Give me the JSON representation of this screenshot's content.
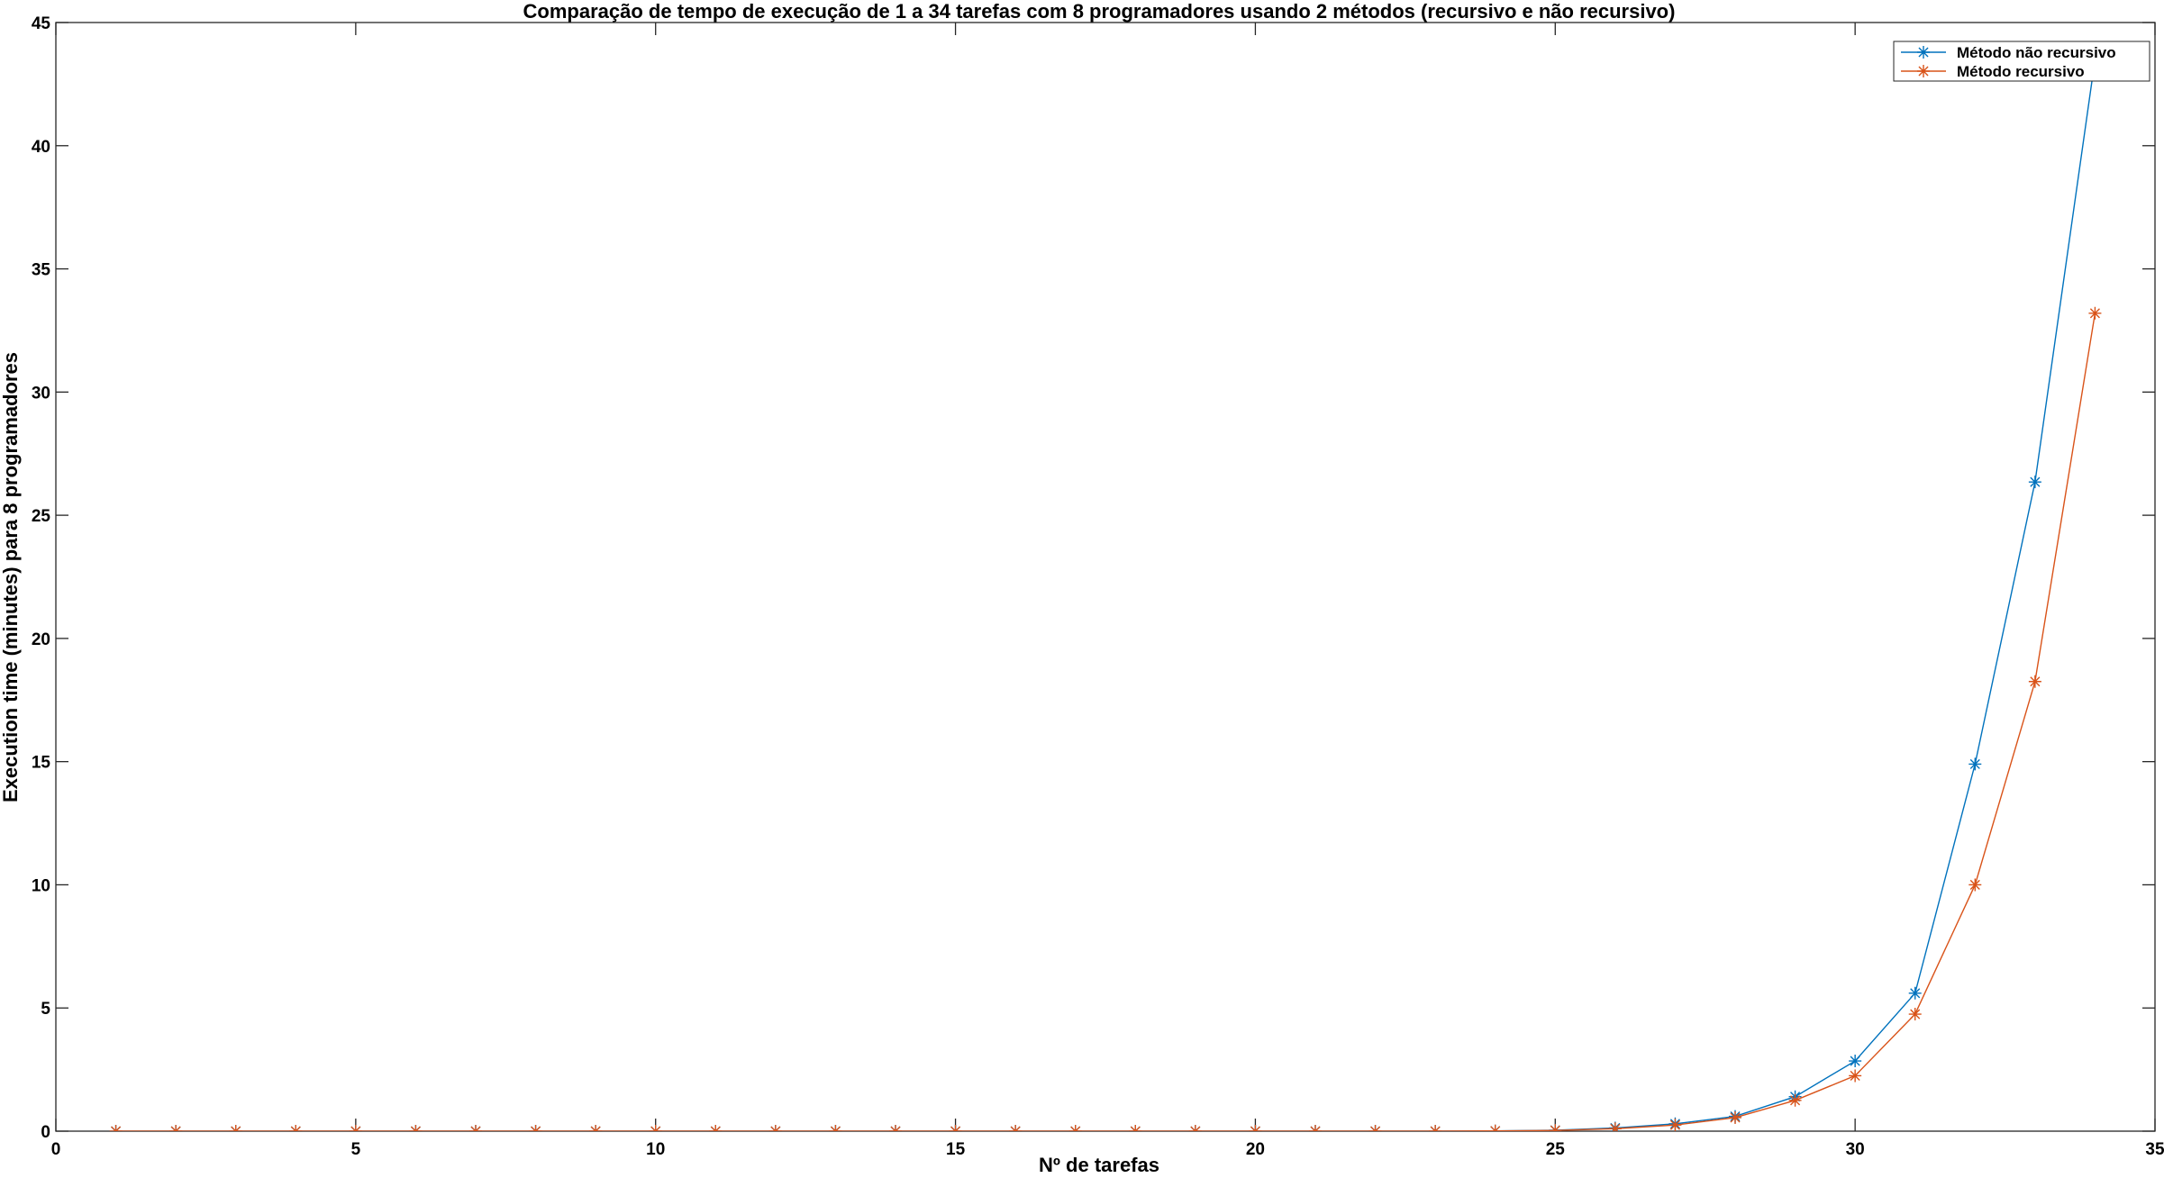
{
  "chart_data": {
    "type": "line",
    "title": "Comparação de tempo de execução de 1 a 34 tarefas com 8 programadores usando 2 métodos (recursivo e não recursivo)",
    "xlabel": "Nº de tarefas",
    "ylabel": "Execution time (minutes) para 8 programadores",
    "xlim": [
      0,
      35
    ],
    "ylim": [
      0,
      45
    ],
    "xticks": [
      0,
      5,
      10,
      15,
      20,
      25,
      30,
      35
    ],
    "yticks": [
      0,
      5,
      10,
      15,
      20,
      25,
      30,
      35,
      40,
      45
    ],
    "legend_position": "top-right",
    "grid": false,
    "marker": "asterisk",
    "x": [
      1,
      2,
      3,
      4,
      5,
      6,
      7,
      8,
      9,
      10,
      11,
      12,
      13,
      14,
      15,
      16,
      17,
      18,
      19,
      20,
      21,
      22,
      23,
      24,
      25,
      26,
      27,
      28,
      29,
      30,
      31,
      32,
      33,
      34
    ],
    "series": [
      {
        "name": "Método não recursivo",
        "color": "#0072BD",
        "values": [
          0,
          0,
          0,
          0,
          0,
          0,
          0,
          0,
          0,
          0,
          0,
          0,
          0,
          0,
          0,
          0,
          0,
          0,
          0,
          0,
          0,
          0,
          0,
          0.01,
          0.04,
          0.13,
          0.3,
          0.6,
          1.4,
          2.85,
          5.6,
          14.9,
          26.35,
          43.5
        ]
      },
      {
        "name": "Método recursivo",
        "color": "#D95319",
        "values": [
          0,
          0,
          0,
          0,
          0,
          0,
          0,
          0,
          0,
          0,
          0,
          0,
          0,
          0,
          0,
          0,
          0,
          0,
          0,
          0,
          0,
          0,
          0,
          0.01,
          0.03,
          0.1,
          0.25,
          0.55,
          1.25,
          2.25,
          4.75,
          10,
          18.25,
          33.2
        ]
      }
    ]
  }
}
